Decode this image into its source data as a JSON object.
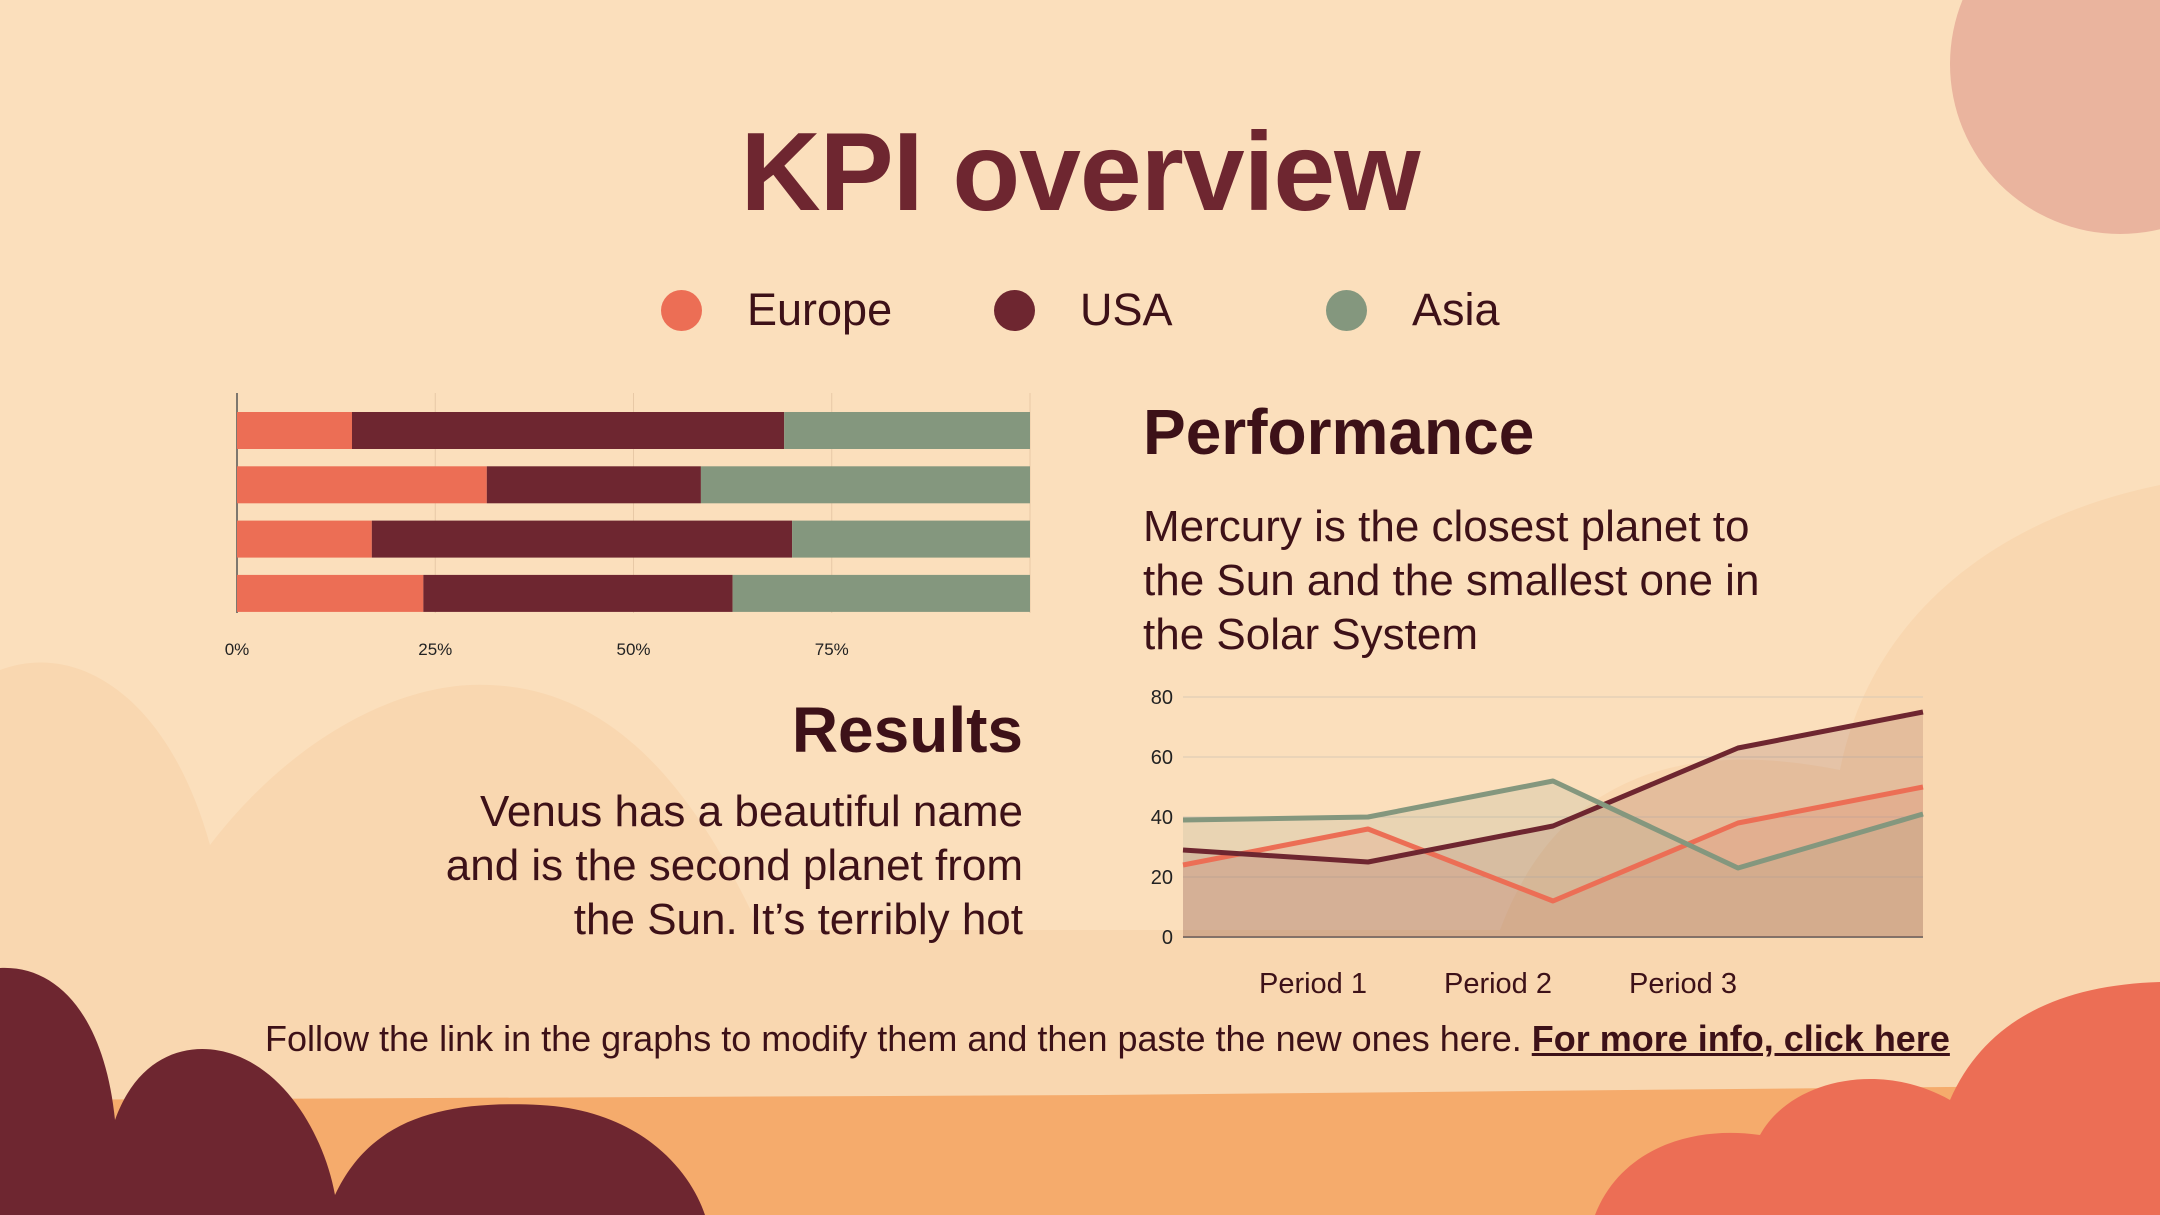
{
  "title": "KPI overview",
  "colors": {
    "europe": "#ec6e55",
    "usa": "#6e2630",
    "asia": "#84977e",
    "text": "#3d1118",
    "background": "#fbdfbc"
  },
  "legend": [
    {
      "label": "Europe",
      "color": "#ec6e55"
    },
    {
      "label": "USA",
      "color": "#6e2630"
    },
    {
      "label": "Asia",
      "color": "#84977e"
    }
  ],
  "performance": {
    "heading": "Performance",
    "lines": [
      "Mercury is the closest planet to",
      "the Sun and the smallest one in",
      "the Solar System"
    ]
  },
  "results": {
    "heading": "Results",
    "lines": [
      "Venus has a beautiful name",
      "and is the second planet from",
      "the Sun. It’s terribly hot"
    ]
  },
  "footer": {
    "text": "Follow the link in the graphs to modify them and then paste the new ones here. ",
    "link": "For more info, click here"
  },
  "chart_data": [
    {
      "type": "bar",
      "orientation": "horizontal",
      "stacked": "percent",
      "categories": [
        "",
        "",
        "",
        ""
      ],
      "series": [
        {
          "name": "Europe",
          "values": [
            14.5,
            31.5,
            17,
            23.5
          ]
        },
        {
          "name": "USA",
          "values": [
            54.5,
            27,
            53,
            39
          ]
        },
        {
          "name": "Asia",
          "values": [
            31,
            41.5,
            30,
            37.5
          ]
        }
      ],
      "xticks": [
        "0%",
        "25%",
        "50%",
        "75%"
      ],
      "xlim": [
        0,
        100
      ],
      "grid": true
    },
    {
      "type": "line",
      "x": [
        "",
        "Period 1",
        "Period 2",
        "Period 3",
        ""
      ],
      "series": [
        {
          "name": "Europe",
          "values": [
            24,
            36,
            12,
            38,
            50
          ]
        },
        {
          "name": "USA",
          "values": [
            29,
            25,
            37,
            63,
            75
          ]
        },
        {
          "name": "Asia",
          "values": [
            39,
            40,
            52,
            23,
            41
          ]
        }
      ],
      "yticks": [
        "0",
        "20",
        "40",
        "60",
        "80"
      ],
      "ylim": [
        0,
        80
      ],
      "grid": true
    }
  ]
}
